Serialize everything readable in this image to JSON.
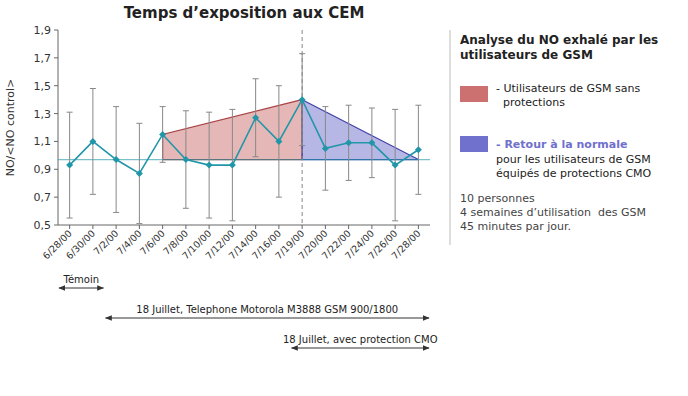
{
  "chart_data": {
    "type": "line",
    "title": "Temps d’exposition aux CEM",
    "y_label": "NO/<NO control>",
    "categories": [
      "6/28/00",
      "6/30/00",
      "7/2/00",
      "7/4/00",
      "7/6/00",
      "7/8/00",
      "7/10/00",
      "7/12/00",
      "7/14/00",
      "7/16/00",
      "7/19/00",
      "7/20/00",
      "7/22/00",
      "7/24/00",
      "7/26/00",
      "7/28/00"
    ],
    "series": [
      {
        "color": "#2196A8",
        "marker": "diamond",
        "line_style": "solid",
        "values": [
          0.93,
          1.1,
          0.97,
          0.87,
          1.15,
          0.97,
          0.93,
          0.93,
          1.27,
          1.1,
          1.4,
          1.05,
          1.09,
          1.09,
          0.93,
          1.04
        ],
        "errors": [
          0.38,
          0.38,
          0.38,
          0.36,
          0.2,
          0.35,
          0.38,
          0.4,
          0.28,
          0.4,
          0.33,
          0.3,
          0.27,
          0.25,
          0.4,
          0.32
        ]
      }
    ],
    "ylim": [
      0.5,
      1.9
    ],
    "yticks": [
      {
        "value": 0.5,
        "label": "0,5"
      },
      {
        "value": 0.7,
        "label": "0,7"
      },
      {
        "value": 0.9,
        "label": "0,9"
      },
      {
        "value": 1.1,
        "label": "1,1"
      },
      {
        "value": 1.3,
        "label": "1,3"
      },
      {
        "value": 1.5,
        "label": "1,5"
      },
      {
        "value": 1.7,
        "label": "1,7"
      },
      {
        "value": 1.9,
        "label": "1,9"
      }
    ],
    "grid": false,
    "baseline": 0.97,
    "vline": "7/19/00",
    "areas": [
      {
        "color": "#CD7070",
        "x_start": "7/6/00",
        "x_end": "7/19/00",
        "y_start": 1.15,
        "y_end": 1.4
      },
      {
        "color": "#7070CD",
        "x_start": "7/19/00",
        "x_end": "7/28/00",
        "y_start": 1.4,
        "y_end": 0.97
      }
    ],
    "spans": [
      {
        "label": "Témoin",
        "from": "6/28/00",
        "to": "6/30/00"
      },
      {
        "label": "18 Juillet, Telephone Motorola M3888 GSM 900/1800",
        "from": "7/2/00",
        "to": "7/28/00"
      },
      {
        "label": "18 Juillet, avec protection CMO",
        "from": "7/19/00",
        "to": "7/28/00"
      }
    ],
    "panel_title": "Analyse du NO exhalé par les\nutilisateurs de GSM",
    "panel_items": [
      {
        "color": "#CD7070",
        "text": "- Utilisateurs de GSM sans\n  protections"
      },
      {
        "color": "#7070CD",
        "highlight": "- Retour à la normale",
        "text": "pour les utilisateurs de GSM\néquipés de protections CMO"
      }
    ],
    "info_text": "10 personnes\n4 semaines d’utilisation  des GSM\n45 minutes par jour."
  }
}
